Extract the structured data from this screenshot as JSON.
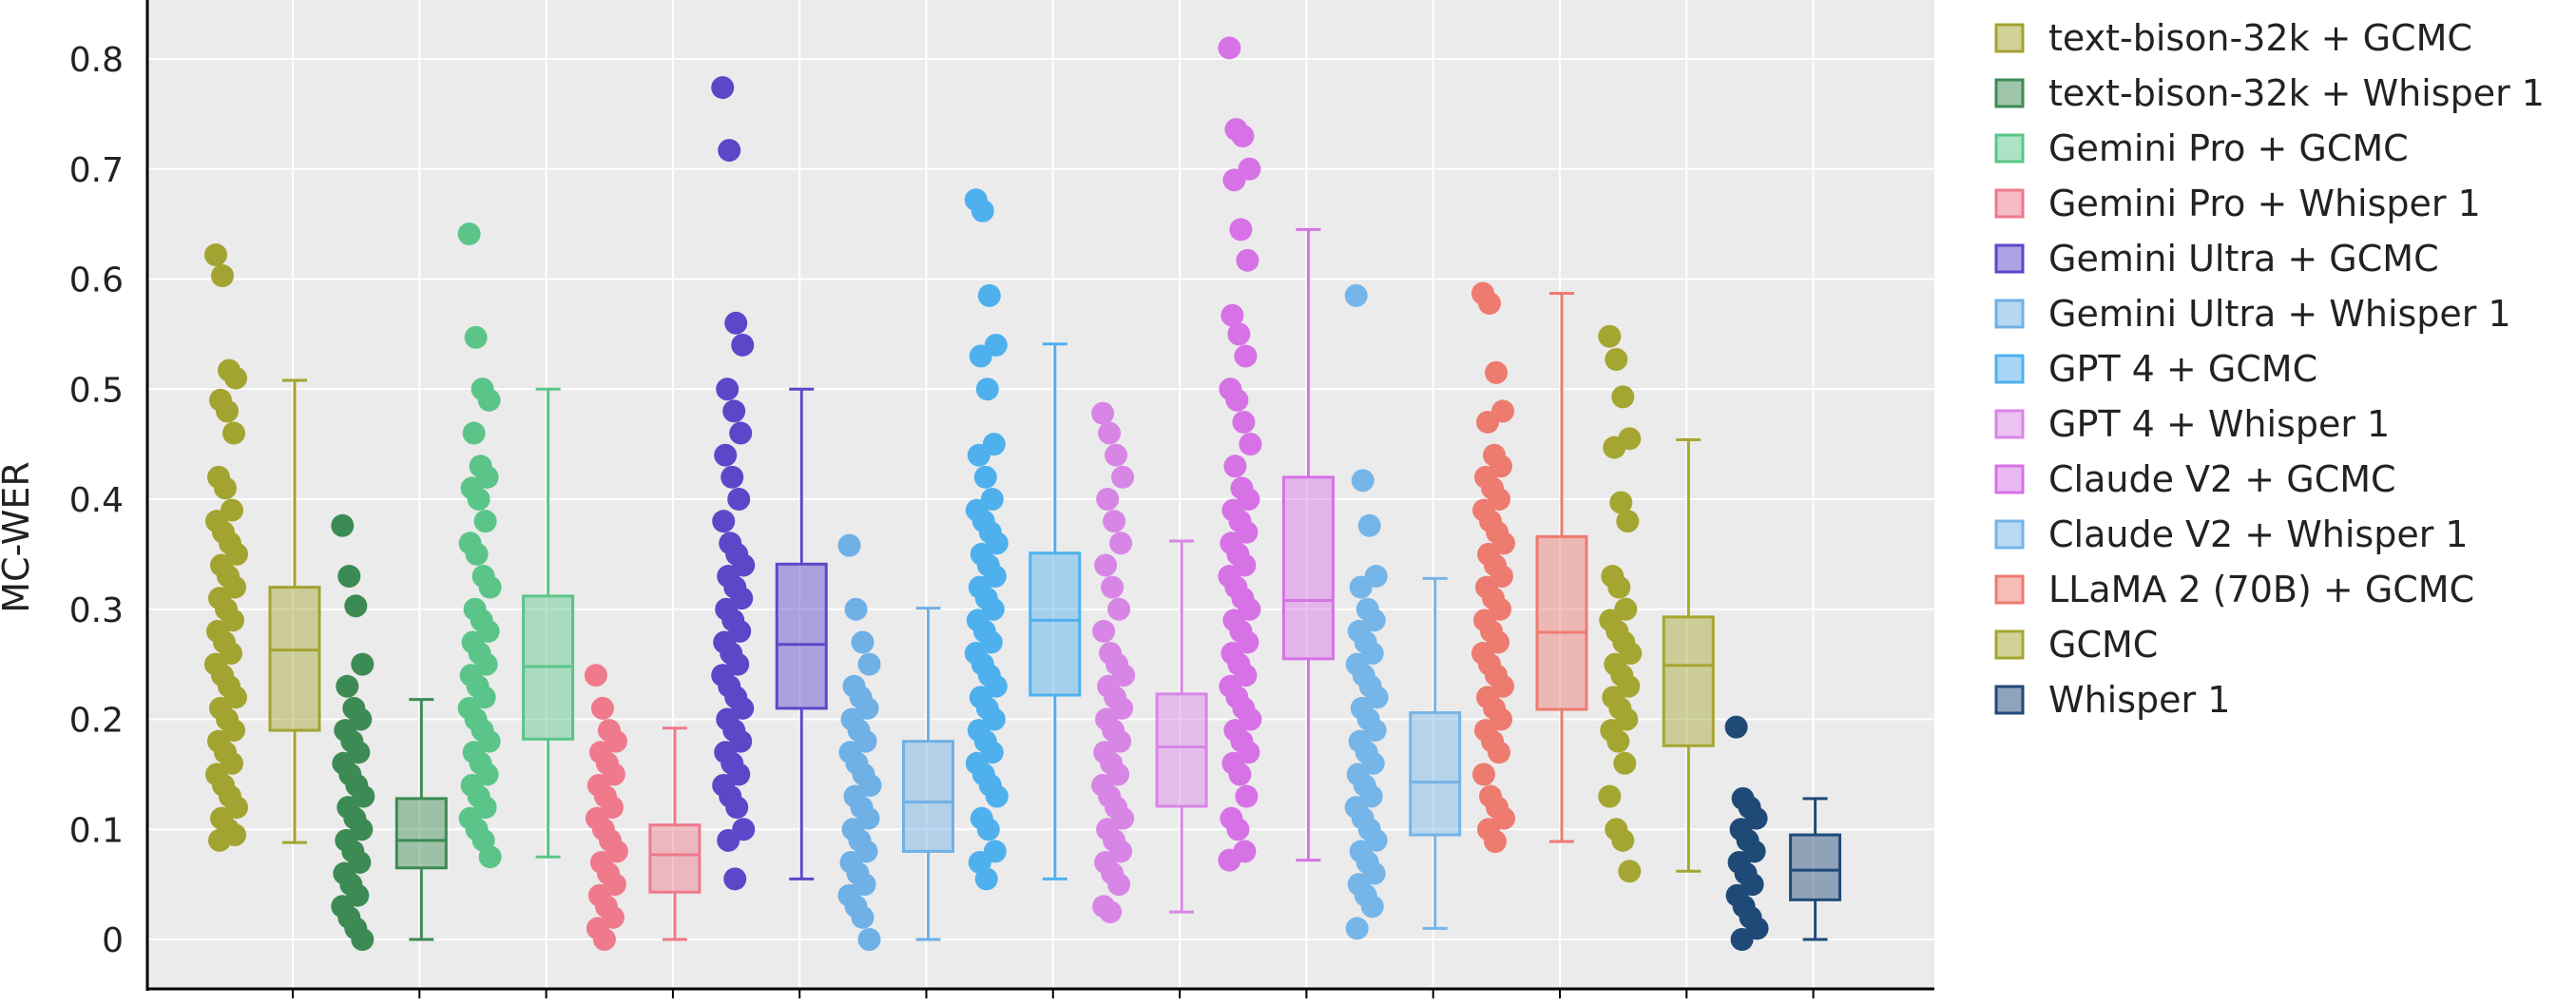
{
  "chart_data": {
    "type": "box",
    "title": "",
    "xlabel": "",
    "ylabel": "MC-WER",
    "ylim": [
      -0.05,
      0.85
    ],
    "y_ticks": [
      0,
      0.1,
      0.2,
      0.3,
      0.4,
      0.5,
      0.6,
      0.7,
      0.8
    ],
    "y_tick_labels": [
      "0",
      "0.1",
      "0.2",
      "0.3",
      "0.4",
      "0.5",
      "0.6",
      "0.7",
      "0.8"
    ],
    "grid": true,
    "legend_position": "right",
    "series": [
      {
        "name": "text-bison-32k + GCMC",
        "color": "#a3a331",
        "q1": 0.19,
        "median": 0.263,
        "q3": 0.32,
        "lower_whisker": 0.088,
        "upper_whisker": 0.508,
        "points": [
          0.622,
          0.603,
          0.517,
          0.51,
          0.49,
          0.48,
          0.46,
          0.42,
          0.41,
          0.39,
          0.38,
          0.37,
          0.36,
          0.35,
          0.34,
          0.33,
          0.32,
          0.31,
          0.3,
          0.29,
          0.28,
          0.27,
          0.26,
          0.25,
          0.24,
          0.23,
          0.22,
          0.21,
          0.2,
          0.19,
          0.18,
          0.17,
          0.16,
          0.15,
          0.14,
          0.13,
          0.12,
          0.11,
          0.1,
          0.095,
          0.09
        ]
      },
      {
        "name": "text-bison-32k + Whisper 1",
        "color": "#3d8b54",
        "q1": 0.065,
        "median": 0.09,
        "q3": 0.128,
        "lower_whisker": 0.0,
        "upper_whisker": 0.218,
        "points": [
          0.376,
          0.33,
          0.303,
          0.25,
          0.23,
          0.21,
          0.2,
          0.19,
          0.18,
          0.17,
          0.16,
          0.15,
          0.14,
          0.13,
          0.12,
          0.11,
          0.1,
          0.09,
          0.08,
          0.07,
          0.06,
          0.05,
          0.04,
          0.03,
          0.02,
          0.01,
          0.0
        ]
      },
      {
        "name": "Gemini Pro + GCMC",
        "color": "#5bc589",
        "q1": 0.182,
        "median": 0.248,
        "q3": 0.312,
        "lower_whisker": 0.075,
        "upper_whisker": 0.5,
        "points": [
          0.641,
          0.547,
          0.5,
          0.49,
          0.46,
          0.43,
          0.42,
          0.41,
          0.4,
          0.38,
          0.36,
          0.35,
          0.33,
          0.32,
          0.3,
          0.29,
          0.28,
          0.27,
          0.26,
          0.25,
          0.24,
          0.23,
          0.22,
          0.21,
          0.2,
          0.19,
          0.18,
          0.17,
          0.16,
          0.15,
          0.14,
          0.13,
          0.12,
          0.11,
          0.1,
          0.09,
          0.075
        ]
      },
      {
        "name": "Gemini Pro + Whisper 1",
        "color": "#ee7a8c",
        "q1": 0.043,
        "median": 0.077,
        "q3": 0.104,
        "lower_whisker": 0.0,
        "upper_whisker": 0.192,
        "points": [
          0.24,
          0.21,
          0.19,
          0.18,
          0.17,
          0.16,
          0.15,
          0.14,
          0.13,
          0.12,
          0.11,
          0.1,
          0.09,
          0.08,
          0.07,
          0.06,
          0.05,
          0.04,
          0.03,
          0.02,
          0.01,
          0.0
        ]
      },
      {
        "name": "Gemini Ultra + GCMC",
        "color": "#5a48c9",
        "q1": 0.21,
        "median": 0.268,
        "q3": 0.341,
        "lower_whisker": 0.055,
        "upper_whisker": 0.5,
        "points": [
          0.774,
          0.717,
          0.56,
          0.54,
          0.5,
          0.48,
          0.46,
          0.44,
          0.42,
          0.4,
          0.38,
          0.36,
          0.35,
          0.34,
          0.33,
          0.32,
          0.31,
          0.3,
          0.29,
          0.28,
          0.27,
          0.26,
          0.25,
          0.24,
          0.23,
          0.22,
          0.21,
          0.2,
          0.19,
          0.18,
          0.17,
          0.16,
          0.15,
          0.14,
          0.13,
          0.12,
          0.1,
          0.09,
          0.055
        ]
      },
      {
        "name": "Gemini Ultra + Whisper 1",
        "color": "#6fb0e6",
        "q1": 0.08,
        "median": 0.125,
        "q3": 0.18,
        "lower_whisker": 0.0,
        "upper_whisker": 0.301,
        "points": [
          0.358,
          0.3,
          0.27,
          0.25,
          0.23,
          0.22,
          0.21,
          0.2,
          0.19,
          0.18,
          0.17,
          0.16,
          0.15,
          0.14,
          0.13,
          0.12,
          0.11,
          0.1,
          0.09,
          0.08,
          0.07,
          0.06,
          0.05,
          0.04,
          0.03,
          0.02,
          0.0
        ]
      },
      {
        "name": "GPT 4 + GCMC",
        "color": "#4fb0ee",
        "q1": 0.222,
        "median": 0.29,
        "q3": 0.351,
        "lower_whisker": 0.055,
        "upper_whisker": 0.541,
        "points": [
          0.672,
          0.662,
          0.585,
          0.54,
          0.53,
          0.5,
          0.45,
          0.44,
          0.42,
          0.4,
          0.39,
          0.38,
          0.37,
          0.36,
          0.35,
          0.34,
          0.33,
          0.32,
          0.31,
          0.3,
          0.29,
          0.28,
          0.27,
          0.26,
          0.25,
          0.24,
          0.23,
          0.22,
          0.21,
          0.2,
          0.19,
          0.18,
          0.17,
          0.16,
          0.15,
          0.14,
          0.13,
          0.11,
          0.1,
          0.08,
          0.07,
          0.055
        ]
      },
      {
        "name": "GPT 4 + Whisper 1",
        "color": "#d886e6",
        "q1": 0.121,
        "median": 0.175,
        "q3": 0.223,
        "lower_whisker": 0.025,
        "upper_whisker": 0.362,
        "points": [
          0.478,
          0.46,
          0.44,
          0.42,
          0.4,
          0.38,
          0.36,
          0.34,
          0.32,
          0.3,
          0.28,
          0.26,
          0.25,
          0.24,
          0.23,
          0.22,
          0.21,
          0.2,
          0.19,
          0.18,
          0.17,
          0.16,
          0.15,
          0.14,
          0.13,
          0.12,
          0.11,
          0.1,
          0.09,
          0.08,
          0.07,
          0.06,
          0.05,
          0.03,
          0.025
        ]
      },
      {
        "name": "Claude V2 + GCMC",
        "color": "#d672e6",
        "q1": 0.255,
        "median": 0.308,
        "q3": 0.42,
        "lower_whisker": 0.072,
        "upper_whisker": 0.645,
        "points": [
          0.81,
          0.736,
          0.73,
          0.7,
          0.69,
          0.645,
          0.617,
          0.567,
          0.55,
          0.53,
          0.5,
          0.49,
          0.47,
          0.45,
          0.43,
          0.41,
          0.4,
          0.39,
          0.38,
          0.37,
          0.36,
          0.35,
          0.34,
          0.33,
          0.32,
          0.31,
          0.3,
          0.29,
          0.28,
          0.27,
          0.26,
          0.25,
          0.24,
          0.23,
          0.22,
          0.21,
          0.2,
          0.19,
          0.18,
          0.17,
          0.16,
          0.15,
          0.13,
          0.11,
          0.1,
          0.08,
          0.072
        ]
      },
      {
        "name": "Claude V2 + Whisper 1",
        "color": "#76b5e8",
        "q1": 0.095,
        "median": 0.143,
        "q3": 0.206,
        "lower_whisker": 0.01,
        "upper_whisker": 0.328,
        "points": [
          0.585,
          0.417,
          0.376,
          0.33,
          0.32,
          0.3,
          0.29,
          0.28,
          0.27,
          0.26,
          0.25,
          0.24,
          0.23,
          0.22,
          0.21,
          0.2,
          0.19,
          0.18,
          0.17,
          0.16,
          0.15,
          0.14,
          0.13,
          0.12,
          0.11,
          0.1,
          0.09,
          0.08,
          0.07,
          0.06,
          0.05,
          0.04,
          0.03,
          0.01
        ]
      },
      {
        "name": "LLaMA 2 (70B) + GCMC",
        "color": "#ee7b70",
        "q1": 0.209,
        "median": 0.279,
        "q3": 0.366,
        "lower_whisker": 0.089,
        "upper_whisker": 0.587,
        "points": [
          0.587,
          0.578,
          0.515,
          0.48,
          0.47,
          0.44,
          0.43,
          0.42,
          0.41,
          0.4,
          0.39,
          0.38,
          0.37,
          0.36,
          0.35,
          0.34,
          0.33,
          0.32,
          0.31,
          0.3,
          0.29,
          0.28,
          0.27,
          0.26,
          0.25,
          0.24,
          0.23,
          0.22,
          0.21,
          0.2,
          0.19,
          0.18,
          0.17,
          0.15,
          0.13,
          0.12,
          0.11,
          0.1,
          0.089
        ]
      },
      {
        "name": "GCMC",
        "color": "#a5a631",
        "q1": 0.176,
        "median": 0.249,
        "q3": 0.293,
        "lower_whisker": 0.062,
        "upper_whisker": 0.454,
        "points": [
          0.548,
          0.527,
          0.493,
          0.455,
          0.447,
          0.397,
          0.38,
          0.33,
          0.32,
          0.3,
          0.29,
          0.28,
          0.27,
          0.26,
          0.25,
          0.24,
          0.23,
          0.22,
          0.21,
          0.2,
          0.19,
          0.18,
          0.16,
          0.13,
          0.1,
          0.09,
          0.062
        ]
      },
      {
        "name": "Whisper 1",
        "color": "#1f4a78",
        "q1": 0.036,
        "median": 0.063,
        "q3": 0.095,
        "lower_whisker": 0.0,
        "upper_whisker": 0.128,
        "points": [
          0.193,
          0.128,
          0.12,
          0.11,
          0.1,
          0.09,
          0.08,
          0.07,
          0.06,
          0.05,
          0.04,
          0.03,
          0.02,
          0.01,
          0.0
        ]
      }
    ]
  }
}
